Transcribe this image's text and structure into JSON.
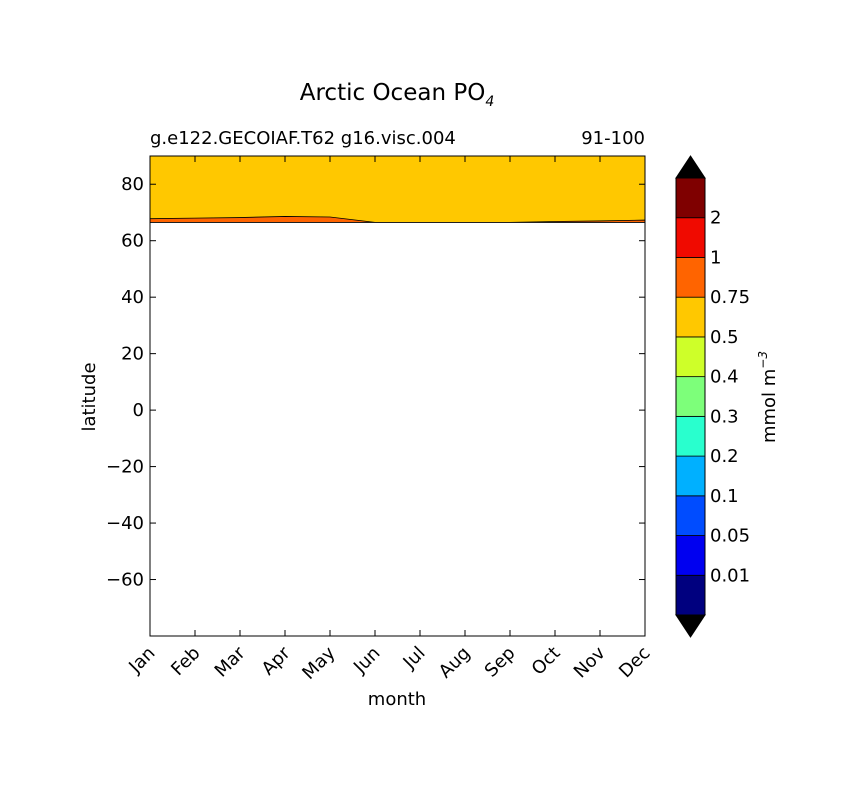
{
  "chart_data": {
    "type": "heatmap",
    "title": "Arctic Ocean PO",
    "title_subscript": "4",
    "subtitle_left": "g.e122.GECOIAF.T62 g16.visc.004",
    "subtitle_right": "91-100",
    "xlabel": "month",
    "ylabel": "latitude",
    "x_categories": [
      "Jan",
      "Feb",
      "Mar",
      "Apr",
      "May",
      "Jun",
      "Jul",
      "Aug",
      "Sep",
      "Oct",
      "Nov",
      "Dec"
    ],
    "ylim": [
      -80,
      90
    ],
    "yticks": [
      80,
      60,
      40,
      20,
      0,
      -20,
      -40,
      -60
    ],
    "ytick_labels": [
      "80",
      "60",
      "40",
      "20",
      "0",
      "−20",
      "−40",
      "−60"
    ],
    "grid": false,
    "fill_regions": [
      {
        "level": "0.5-0.75",
        "color": "#ffc800",
        "lat_min": 66.5,
        "lat_max": 90
      }
    ],
    "contour_band": {
      "level": "0.75-1",
      "color": "#ff6400",
      "lat_min": 66.5,
      "upper_lat": [
        67.8,
        68.0,
        68.2,
        68.6,
        68.4,
        66.5,
        66.5,
        66.5,
        66.5,
        66.8,
        67.0,
        67.3
      ]
    },
    "colorbar": {
      "label": "mmol m",
      "label_superscript": "−3",
      "bounds": [
        "0.01",
        "0.05",
        "0.1",
        "0.2",
        "0.3",
        "0.4",
        "0.5",
        "0.75",
        "1",
        "2"
      ],
      "colors": [
        "#00007f",
        "#0000f0",
        "#004cff",
        "#00b0ff",
        "#29ffce",
        "#7dff7a",
        "#ceff29",
        "#ffc800",
        "#ff6400",
        "#f00a00",
        "#7f0000"
      ],
      "extend_min_color": "#000000",
      "extend_max_color": "#000000"
    }
  }
}
